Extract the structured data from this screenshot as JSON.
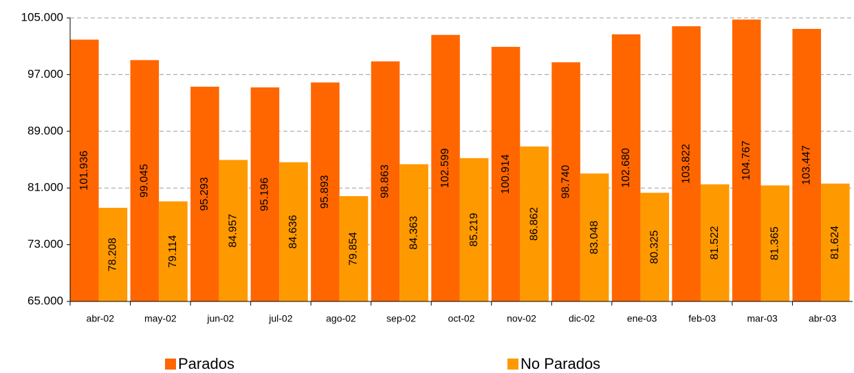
{
  "chart_data": {
    "type": "bar",
    "categories": [
      "abr-02",
      "may-02",
      "jun-02",
      "jul-02",
      "ago-02",
      "sep-02",
      "oct-02",
      "nov-02",
      "dic-02",
      "ene-03",
      "feb-03",
      "mar-03",
      "abr-03"
    ],
    "series": [
      {
        "name": "Parados",
        "color": "#ff6600",
        "values": [
          101936,
          99045,
          95293,
          95196,
          95893,
          98863,
          102599,
          100914,
          98740,
          102680,
          103822,
          104767,
          103447
        ],
        "value_labels": [
          "101.936",
          "99.045",
          "95.293",
          "95.196",
          "95.893",
          "98.863",
          "102.599",
          "100.914",
          "98.740",
          "102.680",
          "103.822",
          "104.767",
          "103.447"
        ]
      },
      {
        "name": "No Parados",
        "color": "#ff9900",
        "values": [
          78208,
          79114,
          84957,
          84636,
          79854,
          84363,
          85219,
          86862,
          83048,
          80325,
          81522,
          81365,
          81624
        ],
        "value_labels": [
          "78.208",
          "79.114",
          "84.957",
          "84.636",
          "79.854",
          "84.363",
          "85.219",
          "86.862",
          "83.048",
          "80.325",
          "81.522",
          "81.365",
          "81.624"
        ]
      }
    ],
    "ylim": [
      65000,
      105000
    ],
    "yticks": [
      {
        "value": 65000,
        "label": "65.000"
      },
      {
        "value": 73000,
        "label": "73.000"
      },
      {
        "value": 81000,
        "label": "81.000"
      },
      {
        "value": 89000,
        "label": "89.000"
      },
      {
        "value": 97000,
        "label": "97.000"
      },
      {
        "value": 105000,
        "label": "105.000"
      }
    ],
    "grid": true,
    "legend": "bottom"
  }
}
